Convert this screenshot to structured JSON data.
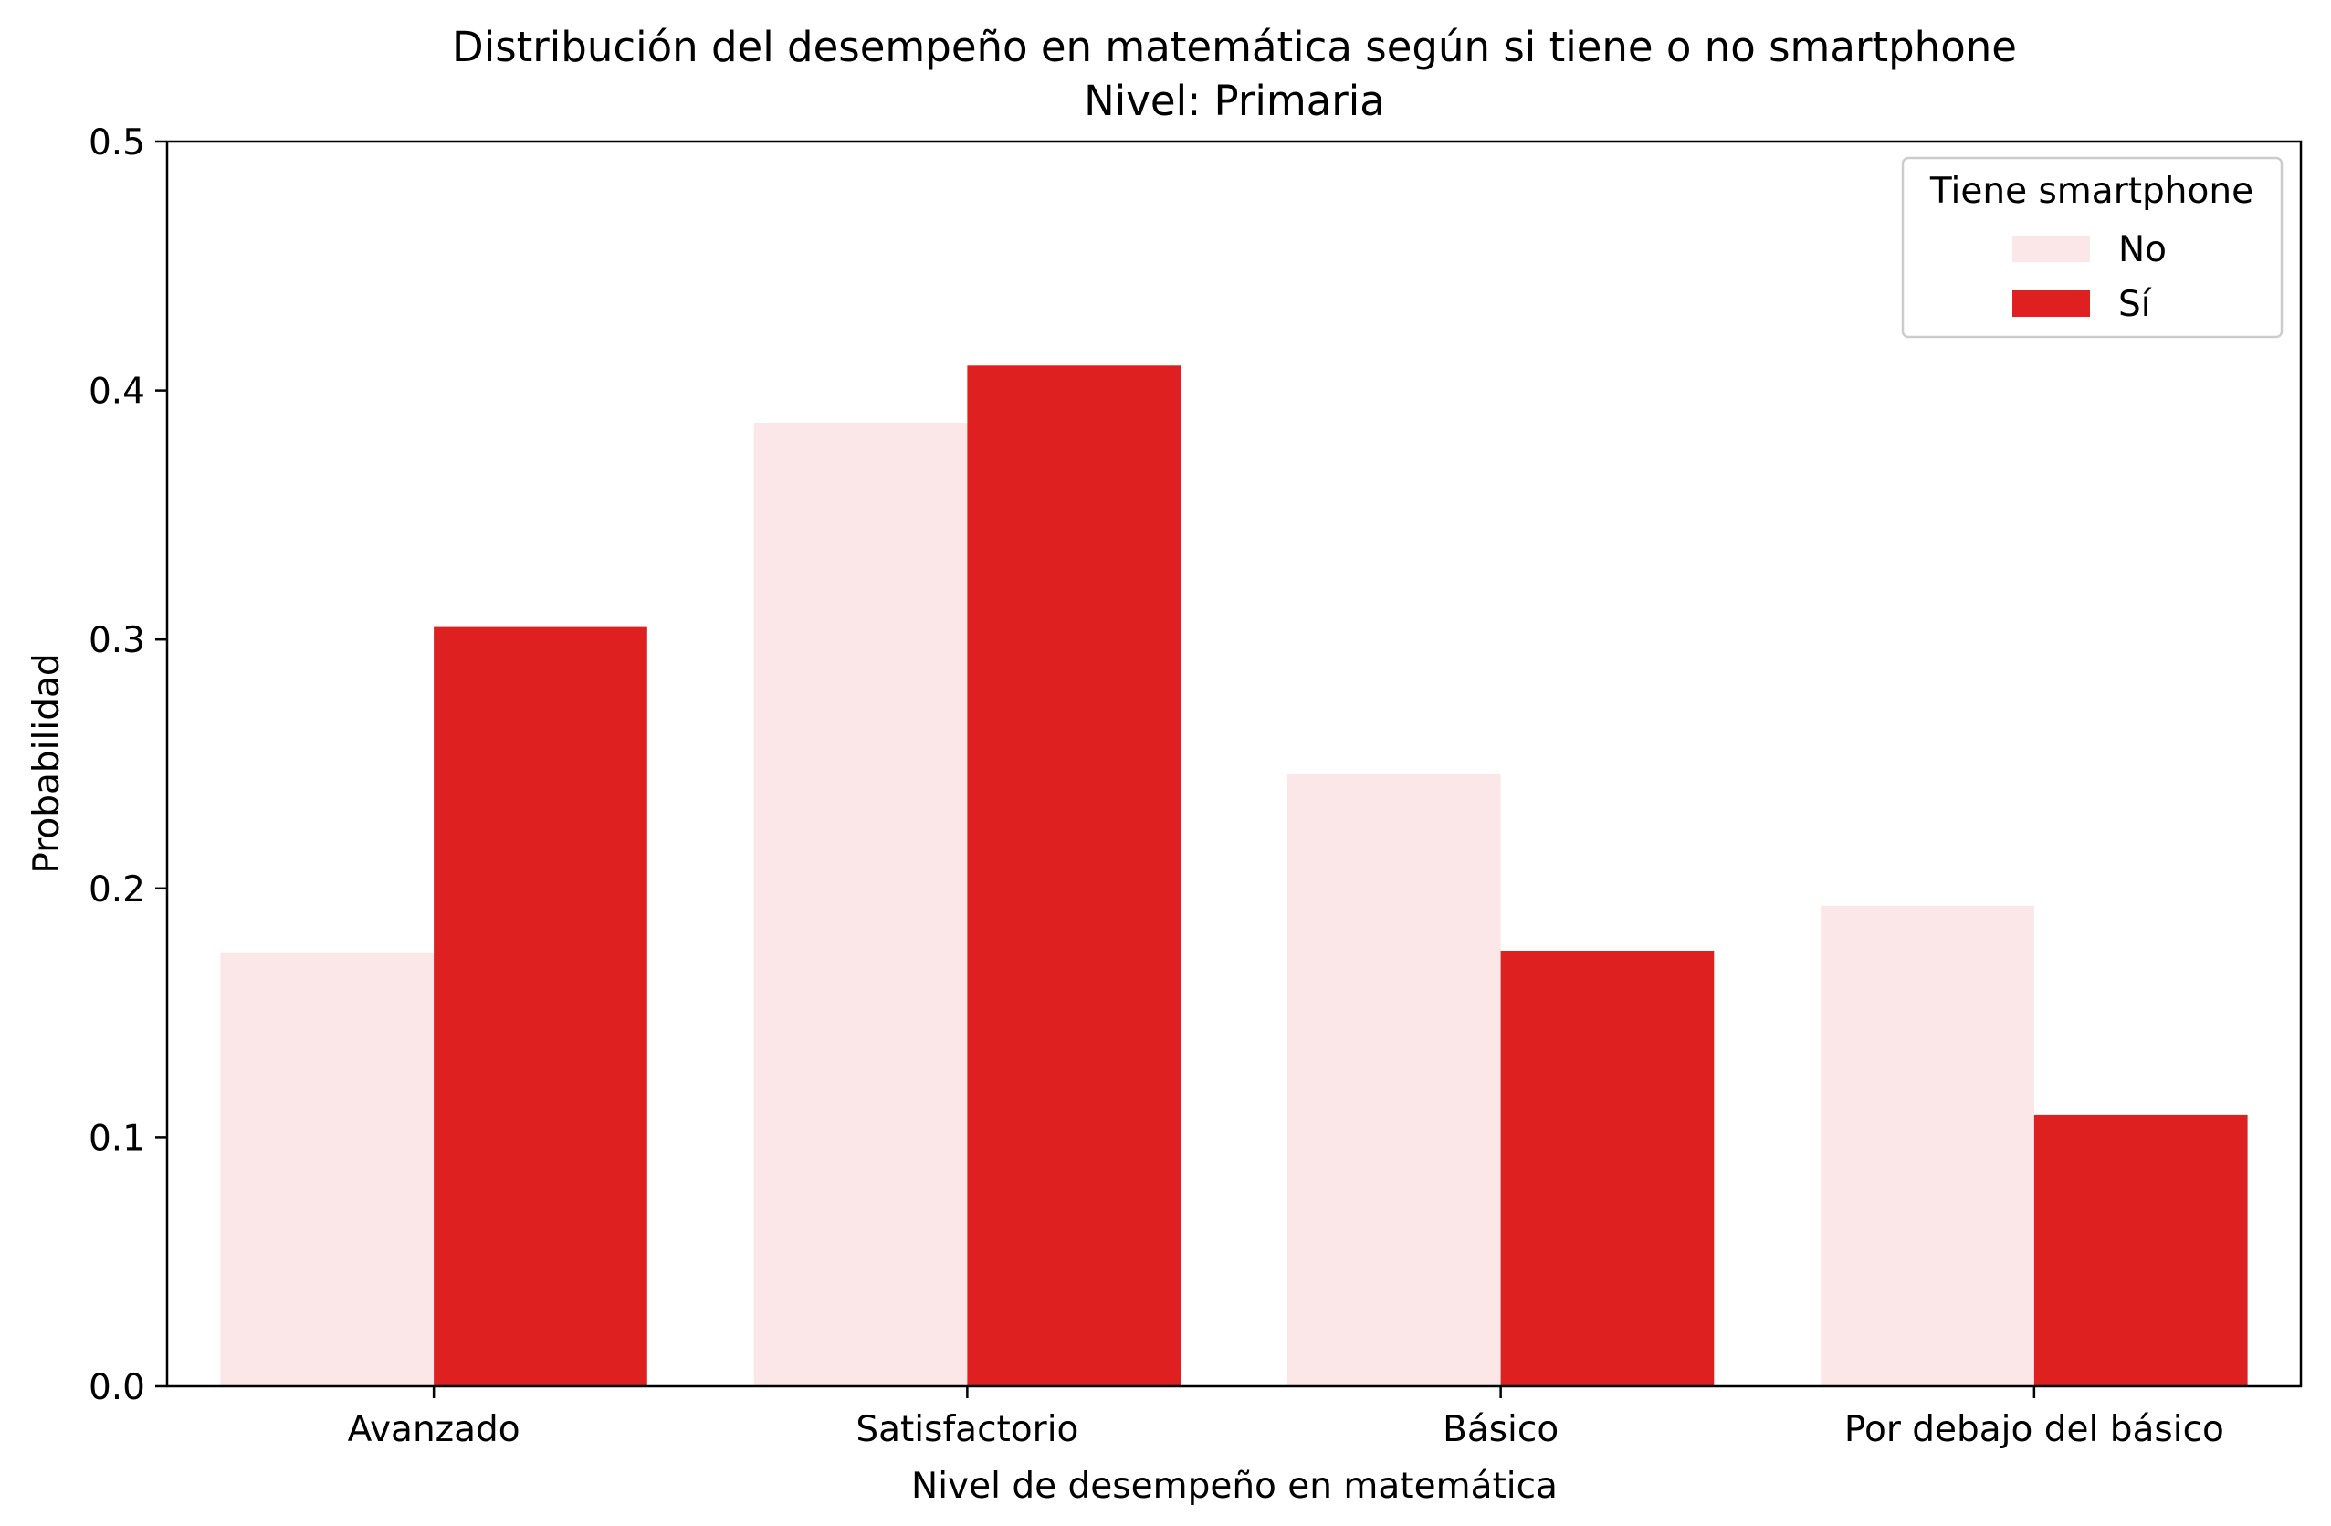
{
  "chart_data": {
    "type": "bar",
    "title": "Distribución del desempeño en matemática según si tiene o no smartphone",
    "subtitle": "Nivel: Primaria",
    "xlabel": "Nivel de desempeño en matemática",
    "ylabel": "Probabilidad",
    "categories": [
      "Avanzado",
      "Satisfactorio",
      "Básico",
      "Por debajo del básico"
    ],
    "series": [
      {
        "name": "No",
        "values": [
          0.174,
          0.387,
          0.246,
          0.193
        ],
        "color": "#fbe7e7"
      },
      {
        "name": "Sí",
        "values": [
          0.305,
          0.41,
          0.175,
          0.109
        ],
        "color": "#de2021"
      }
    ],
    "ylim": [
      0,
      0.5
    ],
    "yticks": [
      "0.0",
      "0.1",
      "0.2",
      "0.3",
      "0.4",
      "0.5"
    ],
    "grid": false,
    "legend": {
      "title": "Tiene smartphone",
      "placement": "top-right"
    }
  }
}
